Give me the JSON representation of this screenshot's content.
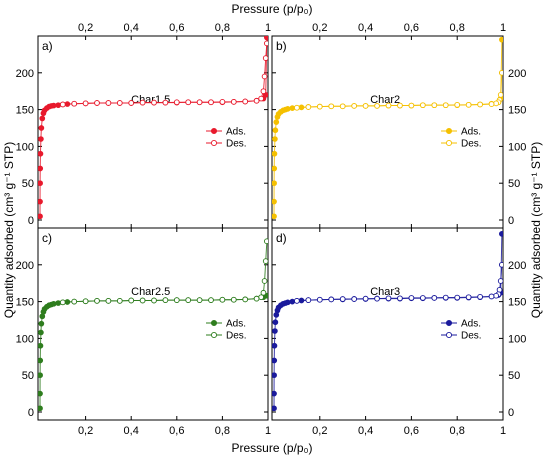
{
  "figure": {
    "top_xlabel": "Pressure (p/p₀)",
    "bottom_xlabel": "Pressure (p/p₀)",
    "left_ylabel": "Quantity adsorbed (cm³ g⁻¹ STP)",
    "right_ylabel": "Quantity adsorbed (cm³ g⁻¹ STP)"
  },
  "chart_data": [
    {
      "type": "scatter",
      "panel": "a)",
      "title": "Char1.5",
      "color": "#e8192c",
      "xlim": [
        0,
        1
      ],
      "ylim": [
        0,
        250
      ],
      "xticks": [
        0.2,
        0.4,
        0.6,
        0.8,
        1.0
      ],
      "xtick_labels": [
        "0,2",
        "0,4",
        "0,6",
        "0,8",
        "1"
      ],
      "yticks": [
        0,
        50,
        100,
        150,
        200
      ],
      "ytick_labels": [
        "0",
        "50",
        "100",
        "150",
        "200"
      ],
      "legend": [
        "Ads.",
        "Des."
      ],
      "legend_position": "center-right",
      "grid": false,
      "series": [
        {
          "name": "Ads.",
          "marker": "filled-circle",
          "x": [
            0.0001,
            0.0002,
            0.0005,
            0.001,
            0.002,
            0.004,
            0.006,
            0.01,
            0.015,
            0.02,
            0.03,
            0.04,
            0.05,
            0.06,
            0.08,
            0.1,
            0.12,
            0.15,
            0.2,
            0.25,
            0.3,
            0.35,
            0.4,
            0.45,
            0.5,
            0.55,
            0.6,
            0.65,
            0.7,
            0.75,
            0.8,
            0.85,
            0.9,
            0.95,
            0.98,
            0.99,
            0.995
          ],
          "y": [
            5,
            25,
            50,
            70,
            90,
            110,
            125,
            138,
            145,
            149,
            152,
            154,
            155,
            155.5,
            156,
            157,
            157.5,
            158,
            158.5,
            159,
            159,
            159,
            159,
            159.5,
            159.5,
            159.5,
            159.5,
            160,
            160,
            160,
            160,
            160.5,
            161,
            162,
            165,
            170,
            248
          ]
        },
        {
          "name": "Des.",
          "marker": "open-circle",
          "x": [
            0.995,
            0.99,
            0.985,
            0.98,
            0.97,
            0.95,
            0.9,
            0.85,
            0.8,
            0.75,
            0.7,
            0.65,
            0.6,
            0.55,
            0.5,
            0.45,
            0.4,
            0.35,
            0.3,
            0.25,
            0.2,
            0.15,
            0.1
          ],
          "y": [
            240,
            220,
            195,
            175,
            165,
            162,
            161,
            160.5,
            160.5,
            160,
            160,
            160,
            160,
            159.5,
            159.5,
            159.5,
            159,
            159,
            159,
            159,
            158.5,
            158,
            157
          ]
        }
      ]
    },
    {
      "type": "scatter",
      "panel": "b)",
      "title": "Char2",
      "color": "#f5c000",
      "xlim": [
        0,
        1
      ],
      "ylim": [
        0,
        250
      ],
      "xticks": [
        0.2,
        0.4,
        0.6,
        0.8,
        1.0
      ],
      "xtick_labels": [
        "0,2",
        "0,4",
        "0,6",
        "0,8",
        "1"
      ],
      "yticks": [
        0,
        50,
        100,
        150,
        200
      ],
      "ytick_labels": [
        "0",
        "50",
        "100",
        "150",
        "200"
      ],
      "legend": [
        "Ads.",
        "Des."
      ],
      "legend_position": "center-right",
      "grid": false,
      "series": [
        {
          "name": "Ads.",
          "marker": "filled-circle",
          "x": [
            0.0001,
            0.0002,
            0.0005,
            0.001,
            0.002,
            0.004,
            0.006,
            0.01,
            0.015,
            0.02,
            0.03,
            0.04,
            0.05,
            0.06,
            0.08,
            0.1,
            0.12,
            0.15,
            0.2,
            0.25,
            0.3,
            0.35,
            0.4,
            0.45,
            0.5,
            0.55,
            0.6,
            0.65,
            0.7,
            0.75,
            0.8,
            0.85,
            0.9,
            0.95,
            0.98,
            0.99,
            0.995
          ],
          "y": [
            5,
            25,
            50,
            70,
            90,
            110,
            122,
            133,
            140,
            144,
            147,
            149,
            150,
            151,
            152,
            152.5,
            153,
            153.5,
            154,
            154.5,
            154.5,
            155,
            155,
            155,
            155.5,
            155.5,
            155.5,
            156,
            156,
            156,
            156,
            156.5,
            157,
            158,
            160,
            165,
            245
          ]
        },
        {
          "name": "Des.",
          "marker": "open-circle",
          "x": [
            0.995,
            0.99,
            0.985,
            0.98,
            0.97,
            0.95,
            0.9,
            0.85,
            0.8,
            0.75,
            0.7,
            0.65,
            0.6,
            0.55,
            0.5,
            0.45,
            0.4,
            0.35,
            0.3,
            0.25,
            0.2,
            0.15,
            0.1
          ],
          "y": [
            200,
            170,
            163,
            160,
            158.5,
            157.5,
            157,
            156.5,
            156.5,
            156,
            156,
            156,
            155.5,
            155.5,
            155.5,
            155,
            155,
            155,
            154.5,
            154.5,
            154,
            153.5,
            152.5
          ]
        }
      ]
    },
    {
      "type": "scatter",
      "panel": "c)",
      "title": "Char2.5",
      "color": "#2e7d1e",
      "xlim": [
        0,
        1
      ],
      "ylim": [
        0,
        250
      ],
      "xticks": [
        0.2,
        0.4,
        0.6,
        0.8,
        1.0
      ],
      "xtick_labels": [
        "0,2",
        "0,4",
        "0,6",
        "0,8",
        "1"
      ],
      "yticks": [
        0,
        50,
        100,
        150,
        200
      ],
      "ytick_labels": [
        "0",
        "50",
        "100",
        "150",
        "200"
      ],
      "legend": [
        "Ads.",
        "Des."
      ],
      "legend_position": "center-right",
      "grid": false,
      "series": [
        {
          "name": "Ads.",
          "marker": "filled-circle",
          "x": [
            0.0001,
            0.0002,
            0.0005,
            0.001,
            0.002,
            0.004,
            0.006,
            0.01,
            0.015,
            0.02,
            0.03,
            0.04,
            0.05,
            0.06,
            0.08,
            0.1,
            0.12,
            0.15,
            0.2,
            0.25,
            0.3,
            0.35,
            0.4,
            0.45,
            0.5,
            0.55,
            0.6,
            0.65,
            0.7,
            0.75,
            0.8,
            0.85,
            0.9,
            0.95,
            0.98,
            0.99,
            0.995
          ],
          "y": [
            5,
            25,
            50,
            70,
            90,
            108,
            120,
            130,
            136,
            140,
            143,
            145,
            146,
            147,
            148,
            149,
            149.5,
            150,
            150.5,
            151,
            151,
            151,
            151.5,
            151.5,
            151.5,
            152,
            152,
            152,
            152,
            152,
            152.5,
            152.5,
            153,
            154,
            156,
            158,
            158
          ]
        },
        {
          "name": "Des.",
          "marker": "open-circle",
          "x": [
            0.995,
            0.99,
            0.985,
            0.98,
            0.97,
            0.95,
            0.9,
            0.85,
            0.8,
            0.75,
            0.7,
            0.65,
            0.6,
            0.55,
            0.5,
            0.45,
            0.4,
            0.35,
            0.3,
            0.25,
            0.2,
            0.15,
            0.1
          ],
          "y": [
            232,
            205,
            178,
            162,
            156,
            154,
            153,
            152.5,
            152.5,
            152,
            152,
            152,
            152,
            152,
            151.5,
            151.5,
            151.5,
            151,
            151,
            151,
            150.5,
            150,
            149
          ]
        }
      ]
    },
    {
      "type": "scatter",
      "panel": "d)",
      "title": "Char3",
      "color": "#1a1a9c",
      "xlim": [
        0,
        1
      ],
      "ylim": [
        0,
        250
      ],
      "xticks": [
        0.2,
        0.4,
        0.6,
        0.8,
        1.0
      ],
      "xtick_labels": [
        "0,2",
        "0,4",
        "0,6",
        "0,8",
        "1"
      ],
      "yticks": [
        0,
        50,
        100,
        150,
        200
      ],
      "ytick_labels": [
        "0",
        "50",
        "100",
        "150",
        "200"
      ],
      "legend": [
        "Ads.",
        "Des."
      ],
      "legend_position": "center-right",
      "grid": false,
      "series": [
        {
          "name": "Ads.",
          "marker": "filled-circle",
          "x": [
            0.0001,
            0.0002,
            0.0005,
            0.001,
            0.002,
            0.004,
            0.006,
            0.01,
            0.015,
            0.02,
            0.03,
            0.04,
            0.05,
            0.06,
            0.08,
            0.1,
            0.12,
            0.15,
            0.2,
            0.25,
            0.3,
            0.35,
            0.4,
            0.45,
            0.5,
            0.55,
            0.6,
            0.65,
            0.7,
            0.75,
            0.8,
            0.85,
            0.9,
            0.95,
            0.98,
            0.99,
            0.995
          ],
          "y": [
            5,
            25,
            50,
            70,
            90,
            110,
            122,
            132,
            138,
            142,
            145,
            147,
            148,
            149,
            150,
            151,
            151.5,
            152,
            152.5,
            153,
            153,
            153.5,
            153.5,
            154,
            154,
            154,
            154.5,
            154.5,
            155,
            155,
            155,
            155.5,
            156,
            157,
            159,
            162,
            242
          ]
        },
        {
          "name": "Des.",
          "marker": "open-circle",
          "x": [
            0.995,
            0.99,
            0.985,
            0.98,
            0.97,
            0.95,
            0.9,
            0.85,
            0.8,
            0.75,
            0.7,
            0.65,
            0.6,
            0.55,
            0.5,
            0.45,
            0.4,
            0.35,
            0.3,
            0.25,
            0.2,
            0.15,
            0.1
          ],
          "y": [
            200,
            178,
            166,
            160,
            158,
            157,
            156.5,
            156,
            155.5,
            155.5,
            155,
            155,
            155,
            154.5,
            154.5,
            154,
            154,
            153.5,
            153.5,
            153,
            152.5,
            152,
            151
          ]
        }
      ]
    }
  ]
}
